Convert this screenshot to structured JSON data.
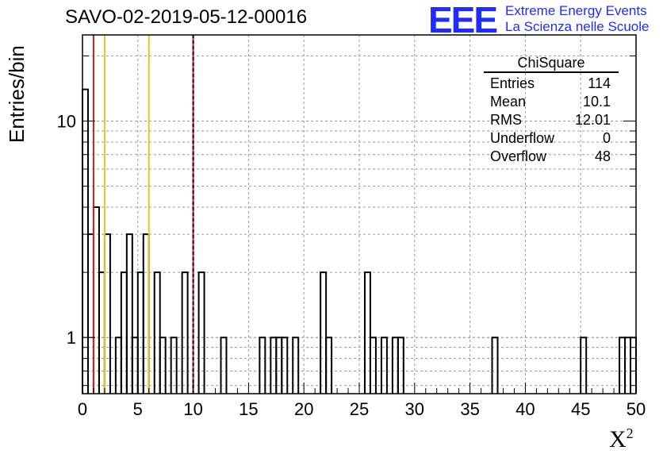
{
  "header": {
    "title": "SAVO-02-2019-05-12-00016"
  },
  "logo": {
    "mark": "EEE",
    "line1": "Extreme Energy Events",
    "line2": "La Scienza nelle Scuole",
    "color": "#1f2bff"
  },
  "axes": {
    "ylabel": "Entries/bin",
    "xlabel_base": "X",
    "xlabel_sup": "2"
  },
  "stats_box": {
    "title": "ChiSquare",
    "rows": [
      {
        "key": "Entries",
        "value": "114"
      },
      {
        "key": "Mean",
        "value": "10.1"
      },
      {
        "key": "RMS",
        "value": "12.01"
      },
      {
        "key": "Underflow",
        "value": "0"
      },
      {
        "key": "Overflow",
        "value": "48"
      }
    ]
  },
  "chart_data": {
    "type": "bar",
    "style": "step-histogram",
    "bin_width": 0.5,
    "xlim": [
      0,
      50
    ],
    "ylim": [
      0.55,
      25
    ],
    "yscale": "log",
    "grid": true,
    "x_ticks": [
      0,
      5,
      10,
      15,
      20,
      25,
      30,
      35,
      40,
      45,
      50
    ],
    "y_ticks": [
      1,
      10
    ],
    "bins": [
      {
        "x": 0.0,
        "y": 14
      },
      {
        "x": 0.5,
        "y": 3
      },
      {
        "x": 1.0,
        "y": 4
      },
      {
        "x": 1.5,
        "y": 2
      },
      {
        "x": 2.0,
        "y": 3
      },
      {
        "x": 2.5,
        "y": 0
      },
      {
        "x": 3.0,
        "y": 1
      },
      {
        "x": 3.5,
        "y": 2
      },
      {
        "x": 4.0,
        "y": 3
      },
      {
        "x": 4.5,
        "y": 1
      },
      {
        "x": 5.0,
        "y": 2
      },
      {
        "x": 5.5,
        "y": 3
      },
      {
        "x": 6.0,
        "y": 0
      },
      {
        "x": 6.5,
        "y": 2
      },
      {
        "x": 7.0,
        "y": 1
      },
      {
        "x": 7.5,
        "y": 0
      },
      {
        "x": 8.0,
        "y": 1
      },
      {
        "x": 8.5,
        "y": 0
      },
      {
        "x": 9.0,
        "y": 2
      },
      {
        "x": 9.5,
        "y": 0
      },
      {
        "x": 10.0,
        "y": 0
      },
      {
        "x": 10.5,
        "y": 2
      },
      {
        "x": 11.0,
        "y": 0
      },
      {
        "x": 11.5,
        "y": 0
      },
      {
        "x": 12.0,
        "y": 0
      },
      {
        "x": 12.5,
        "y": 1
      },
      {
        "x": 13.0,
        "y": 0
      },
      {
        "x": 13.5,
        "y": 0
      },
      {
        "x": 14.0,
        "y": 0
      },
      {
        "x": 14.5,
        "y": 0
      },
      {
        "x": 15.0,
        "y": 0
      },
      {
        "x": 15.5,
        "y": 0
      },
      {
        "x": 16.0,
        "y": 1
      },
      {
        "x": 16.5,
        "y": 0
      },
      {
        "x": 17.0,
        "y": 1
      },
      {
        "x": 17.5,
        "y": 1
      },
      {
        "x": 18.0,
        "y": 1
      },
      {
        "x": 18.5,
        "y": 0
      },
      {
        "x": 19.0,
        "y": 1
      },
      {
        "x": 19.5,
        "y": 0
      },
      {
        "x": 20.0,
        "y": 0
      },
      {
        "x": 20.5,
        "y": 0
      },
      {
        "x": 21.0,
        "y": 0
      },
      {
        "x": 21.5,
        "y": 2
      },
      {
        "x": 22.0,
        "y": 1
      },
      {
        "x": 22.5,
        "y": 0
      },
      {
        "x": 23.0,
        "y": 0
      },
      {
        "x": 23.5,
        "y": 0
      },
      {
        "x": 24.0,
        "y": 0
      },
      {
        "x": 24.5,
        "y": 0
      },
      {
        "x": 25.0,
        "y": 0
      },
      {
        "x": 25.5,
        "y": 2
      },
      {
        "x": 26.0,
        "y": 1
      },
      {
        "x": 26.5,
        "y": 0
      },
      {
        "x": 27.0,
        "y": 1
      },
      {
        "x": 27.5,
        "y": 0
      },
      {
        "x": 28.0,
        "y": 1
      },
      {
        "x": 28.5,
        "y": 1
      },
      {
        "x": 29.0,
        "y": 0
      },
      {
        "x": 29.5,
        "y": 0
      },
      {
        "x": 30.0,
        "y": 0
      },
      {
        "x": 30.5,
        "y": 0
      },
      {
        "x": 31.0,
        "y": 0
      },
      {
        "x": 31.5,
        "y": 0
      },
      {
        "x": 32.0,
        "y": 0
      },
      {
        "x": 32.5,
        "y": 0
      },
      {
        "x": 33.0,
        "y": 0
      },
      {
        "x": 33.5,
        "y": 0
      },
      {
        "x": 34.0,
        "y": 0
      },
      {
        "x": 34.5,
        "y": 0
      },
      {
        "x": 35.0,
        "y": 0
      },
      {
        "x": 35.5,
        "y": 0
      },
      {
        "x": 36.0,
        "y": 0
      },
      {
        "x": 36.5,
        "y": 0
      },
      {
        "x": 37.0,
        "y": 1
      },
      {
        "x": 37.5,
        "y": 0
      },
      {
        "x": 38.0,
        "y": 0
      },
      {
        "x": 38.5,
        "y": 0
      },
      {
        "x": 39.0,
        "y": 0
      },
      {
        "x": 39.5,
        "y": 0
      },
      {
        "x": 40.0,
        "y": 0
      },
      {
        "x": 40.5,
        "y": 0
      },
      {
        "x": 41.0,
        "y": 0
      },
      {
        "x": 41.5,
        "y": 0
      },
      {
        "x": 42.0,
        "y": 0
      },
      {
        "x": 42.5,
        "y": 0
      },
      {
        "x": 43.0,
        "y": 0
      },
      {
        "x": 43.5,
        "y": 0
      },
      {
        "x": 44.0,
        "y": 0
      },
      {
        "x": 44.5,
        "y": 0
      },
      {
        "x": 45.0,
        "y": 1
      },
      {
        "x": 45.5,
        "y": 0
      },
      {
        "x": 46.0,
        "y": 0
      },
      {
        "x": 46.5,
        "y": 0
      },
      {
        "x": 47.0,
        "y": 0
      },
      {
        "x": 47.5,
        "y": 0
      },
      {
        "x": 48.0,
        "y": 0
      },
      {
        "x": 48.5,
        "y": 1
      },
      {
        "x": 49.0,
        "y": 1
      },
      {
        "x": 49.5,
        "y": 1
      }
    ],
    "vertical_lines": [
      {
        "x": 1,
        "color": "#d62020",
        "dash": false
      },
      {
        "x": 2,
        "color": "#f2c21c",
        "dash": false
      },
      {
        "x": 6,
        "color": "#f2c21c",
        "dash": false
      },
      {
        "x": 10,
        "color": "#d62020",
        "dash": false
      },
      {
        "x": 10,
        "color": "#000000",
        "dash": true
      }
    ]
  }
}
